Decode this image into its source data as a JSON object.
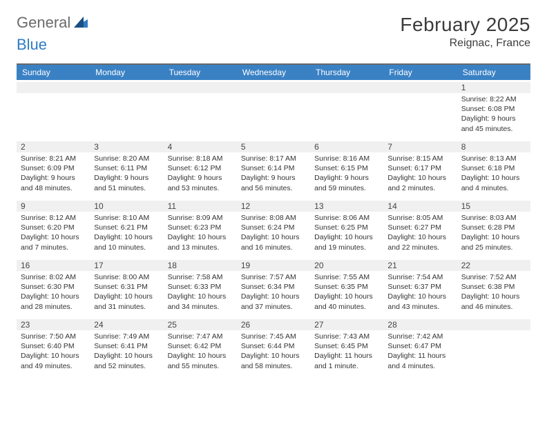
{
  "logo": {
    "text1": "General",
    "text2": "Blue"
  },
  "title": "February 2025",
  "location": "Reignac, France",
  "colors": {
    "header_bar": "#3a81c4",
    "header_text": "#ffffff",
    "strip_bg": "#f0f0f0",
    "top_rule": "#6a6a6a",
    "body_text": "#333333",
    "title_text": "#3b3b3b",
    "logo_gray": "#6a6a6a",
    "logo_blue": "#2f7bc4"
  },
  "day_names": [
    "Sunday",
    "Monday",
    "Tuesday",
    "Wednesday",
    "Thursday",
    "Friday",
    "Saturday"
  ],
  "weeks": [
    [
      null,
      null,
      null,
      null,
      null,
      null,
      {
        "n": "1",
        "sunrise": "Sunrise: 8:22 AM",
        "sunset": "Sunset: 6:08 PM",
        "daylight1": "Daylight: 9 hours",
        "daylight2": "and 45 minutes."
      }
    ],
    [
      {
        "n": "2",
        "sunrise": "Sunrise: 8:21 AM",
        "sunset": "Sunset: 6:09 PM",
        "daylight1": "Daylight: 9 hours",
        "daylight2": "and 48 minutes."
      },
      {
        "n": "3",
        "sunrise": "Sunrise: 8:20 AM",
        "sunset": "Sunset: 6:11 PM",
        "daylight1": "Daylight: 9 hours",
        "daylight2": "and 51 minutes."
      },
      {
        "n": "4",
        "sunrise": "Sunrise: 8:18 AM",
        "sunset": "Sunset: 6:12 PM",
        "daylight1": "Daylight: 9 hours",
        "daylight2": "and 53 minutes."
      },
      {
        "n": "5",
        "sunrise": "Sunrise: 8:17 AM",
        "sunset": "Sunset: 6:14 PM",
        "daylight1": "Daylight: 9 hours",
        "daylight2": "and 56 minutes."
      },
      {
        "n": "6",
        "sunrise": "Sunrise: 8:16 AM",
        "sunset": "Sunset: 6:15 PM",
        "daylight1": "Daylight: 9 hours",
        "daylight2": "and 59 minutes."
      },
      {
        "n": "7",
        "sunrise": "Sunrise: 8:15 AM",
        "sunset": "Sunset: 6:17 PM",
        "daylight1": "Daylight: 10 hours",
        "daylight2": "and 2 minutes."
      },
      {
        "n": "8",
        "sunrise": "Sunrise: 8:13 AM",
        "sunset": "Sunset: 6:18 PM",
        "daylight1": "Daylight: 10 hours",
        "daylight2": "and 4 minutes."
      }
    ],
    [
      {
        "n": "9",
        "sunrise": "Sunrise: 8:12 AM",
        "sunset": "Sunset: 6:20 PM",
        "daylight1": "Daylight: 10 hours",
        "daylight2": "and 7 minutes."
      },
      {
        "n": "10",
        "sunrise": "Sunrise: 8:10 AM",
        "sunset": "Sunset: 6:21 PM",
        "daylight1": "Daylight: 10 hours",
        "daylight2": "and 10 minutes."
      },
      {
        "n": "11",
        "sunrise": "Sunrise: 8:09 AM",
        "sunset": "Sunset: 6:23 PM",
        "daylight1": "Daylight: 10 hours",
        "daylight2": "and 13 minutes."
      },
      {
        "n": "12",
        "sunrise": "Sunrise: 8:08 AM",
        "sunset": "Sunset: 6:24 PM",
        "daylight1": "Daylight: 10 hours",
        "daylight2": "and 16 minutes."
      },
      {
        "n": "13",
        "sunrise": "Sunrise: 8:06 AM",
        "sunset": "Sunset: 6:25 PM",
        "daylight1": "Daylight: 10 hours",
        "daylight2": "and 19 minutes."
      },
      {
        "n": "14",
        "sunrise": "Sunrise: 8:05 AM",
        "sunset": "Sunset: 6:27 PM",
        "daylight1": "Daylight: 10 hours",
        "daylight2": "and 22 minutes."
      },
      {
        "n": "15",
        "sunrise": "Sunrise: 8:03 AM",
        "sunset": "Sunset: 6:28 PM",
        "daylight1": "Daylight: 10 hours",
        "daylight2": "and 25 minutes."
      }
    ],
    [
      {
        "n": "16",
        "sunrise": "Sunrise: 8:02 AM",
        "sunset": "Sunset: 6:30 PM",
        "daylight1": "Daylight: 10 hours",
        "daylight2": "and 28 minutes."
      },
      {
        "n": "17",
        "sunrise": "Sunrise: 8:00 AM",
        "sunset": "Sunset: 6:31 PM",
        "daylight1": "Daylight: 10 hours",
        "daylight2": "and 31 minutes."
      },
      {
        "n": "18",
        "sunrise": "Sunrise: 7:58 AM",
        "sunset": "Sunset: 6:33 PM",
        "daylight1": "Daylight: 10 hours",
        "daylight2": "and 34 minutes."
      },
      {
        "n": "19",
        "sunrise": "Sunrise: 7:57 AM",
        "sunset": "Sunset: 6:34 PM",
        "daylight1": "Daylight: 10 hours",
        "daylight2": "and 37 minutes."
      },
      {
        "n": "20",
        "sunrise": "Sunrise: 7:55 AM",
        "sunset": "Sunset: 6:35 PM",
        "daylight1": "Daylight: 10 hours",
        "daylight2": "and 40 minutes."
      },
      {
        "n": "21",
        "sunrise": "Sunrise: 7:54 AM",
        "sunset": "Sunset: 6:37 PM",
        "daylight1": "Daylight: 10 hours",
        "daylight2": "and 43 minutes."
      },
      {
        "n": "22",
        "sunrise": "Sunrise: 7:52 AM",
        "sunset": "Sunset: 6:38 PM",
        "daylight1": "Daylight: 10 hours",
        "daylight2": "and 46 minutes."
      }
    ],
    [
      {
        "n": "23",
        "sunrise": "Sunrise: 7:50 AM",
        "sunset": "Sunset: 6:40 PM",
        "daylight1": "Daylight: 10 hours",
        "daylight2": "and 49 minutes."
      },
      {
        "n": "24",
        "sunrise": "Sunrise: 7:49 AM",
        "sunset": "Sunset: 6:41 PM",
        "daylight1": "Daylight: 10 hours",
        "daylight2": "and 52 minutes."
      },
      {
        "n": "25",
        "sunrise": "Sunrise: 7:47 AM",
        "sunset": "Sunset: 6:42 PM",
        "daylight1": "Daylight: 10 hours",
        "daylight2": "and 55 minutes."
      },
      {
        "n": "26",
        "sunrise": "Sunrise: 7:45 AM",
        "sunset": "Sunset: 6:44 PM",
        "daylight1": "Daylight: 10 hours",
        "daylight2": "and 58 minutes."
      },
      {
        "n": "27",
        "sunrise": "Sunrise: 7:43 AM",
        "sunset": "Sunset: 6:45 PM",
        "daylight1": "Daylight: 11 hours",
        "daylight2": "and 1 minute."
      },
      {
        "n": "28",
        "sunrise": "Sunrise: 7:42 AM",
        "sunset": "Sunset: 6:47 PM",
        "daylight1": "Daylight: 11 hours",
        "daylight2": "and 4 minutes."
      },
      null
    ]
  ]
}
